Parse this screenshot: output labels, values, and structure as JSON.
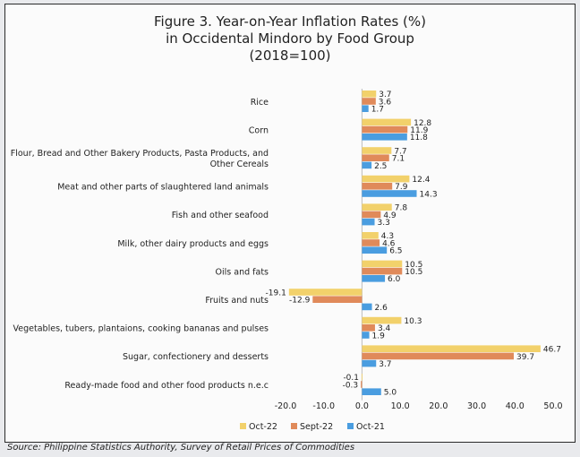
{
  "chart_data": {
    "type": "bar",
    "orientation": "horizontal",
    "title_lines": [
      "Figure 3. Year-on-Year Inflation Rates (%)",
      "in Occidental Mindoro by Food Group",
      "(2018=100)"
    ],
    "categories": [
      [
        "Rice"
      ],
      [
        "Corn"
      ],
      [
        "Flour, Bread and Other Bakery Products, Pasta Products, and",
        "Other Cereals"
      ],
      [
        "Meat and other parts of slaughtered land animals"
      ],
      [
        "Fish and other seafood"
      ],
      [
        "Milk, other dairy products and eggs"
      ],
      [
        "Oils and fats"
      ],
      [
        "Fruits and nuts"
      ],
      [
        "Vegetables, tubers, plantaions, cooking bananas and pulses"
      ],
      [
        "Sugar, confectionery and desserts"
      ],
      [
        "Ready-made food and other food products n.e.c"
      ]
    ],
    "series": [
      {
        "name": "Oct-22",
        "color": "#f2d16b",
        "values": [
          3.7,
          12.8,
          7.7,
          12.4,
          7.8,
          4.3,
          10.5,
          -19.1,
          10.3,
          46.7,
          -0.1
        ]
      },
      {
        "name": "Sept-22",
        "color": "#e08a5a",
        "values": [
          3.6,
          11.9,
          7.1,
          7.9,
          4.9,
          4.6,
          10.5,
          -12.9,
          3.4,
          39.7,
          -0.3
        ]
      },
      {
        "name": "Oct-21",
        "color": "#4a9de0",
        "values": [
          1.7,
          11.8,
          2.5,
          14.3,
          3.3,
          6.5,
          6.0,
          2.6,
          1.9,
          3.7,
          5.0
        ]
      }
    ],
    "xlim": [
      -20,
      50
    ],
    "xticks": [
      "-20.0",
      "-10.0",
      "0.0",
      "10.0",
      "20.0",
      "30.0",
      "40.0",
      "50.0"
    ],
    "grid": false,
    "legend_position": "bottom"
  },
  "source": "Source: Philippine Statistics Authority, Survey of Retail Prices of Commodities"
}
